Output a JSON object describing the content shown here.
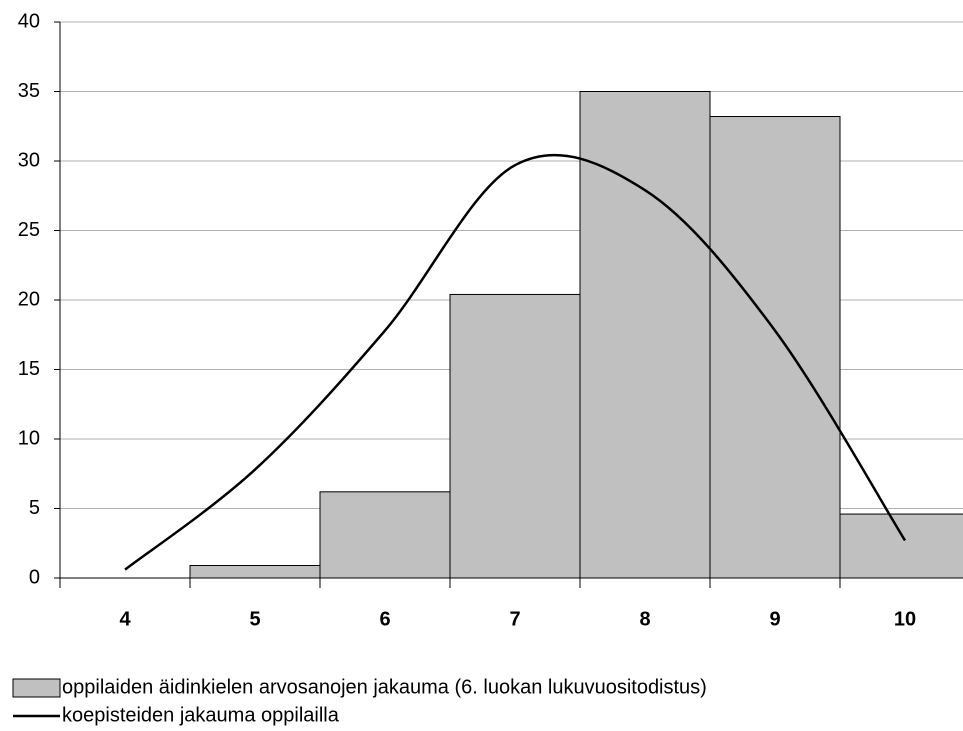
{
  "chart_data": {
    "type": "bar",
    "categories": [
      "4",
      "5",
      "6",
      "7",
      "8",
      "9",
      "10"
    ],
    "series": [
      {
        "name": "oppilaiden äidinkielen arvosanojen jakauma (6. luokan lukuvuositodistus)",
        "type": "bar",
        "color": "#c0c0c0",
        "values": [
          0,
          0.9,
          6.2,
          20.4,
          35,
          33.2,
          4.6
        ]
      },
      {
        "name": "koepisteiden jakauma oppilailla",
        "type": "line",
        "color": "#000000",
        "smooth": true,
        "values": [
          0.6,
          7.8,
          17.8,
          29.7,
          27.9,
          17.8,
          2.7
        ]
      }
    ],
    "ylim": [
      0,
      40
    ],
    "yticks": [
      0,
      5,
      10,
      15,
      20,
      25,
      30,
      35,
      40
    ],
    "grid": true,
    "legend": "bottom"
  }
}
